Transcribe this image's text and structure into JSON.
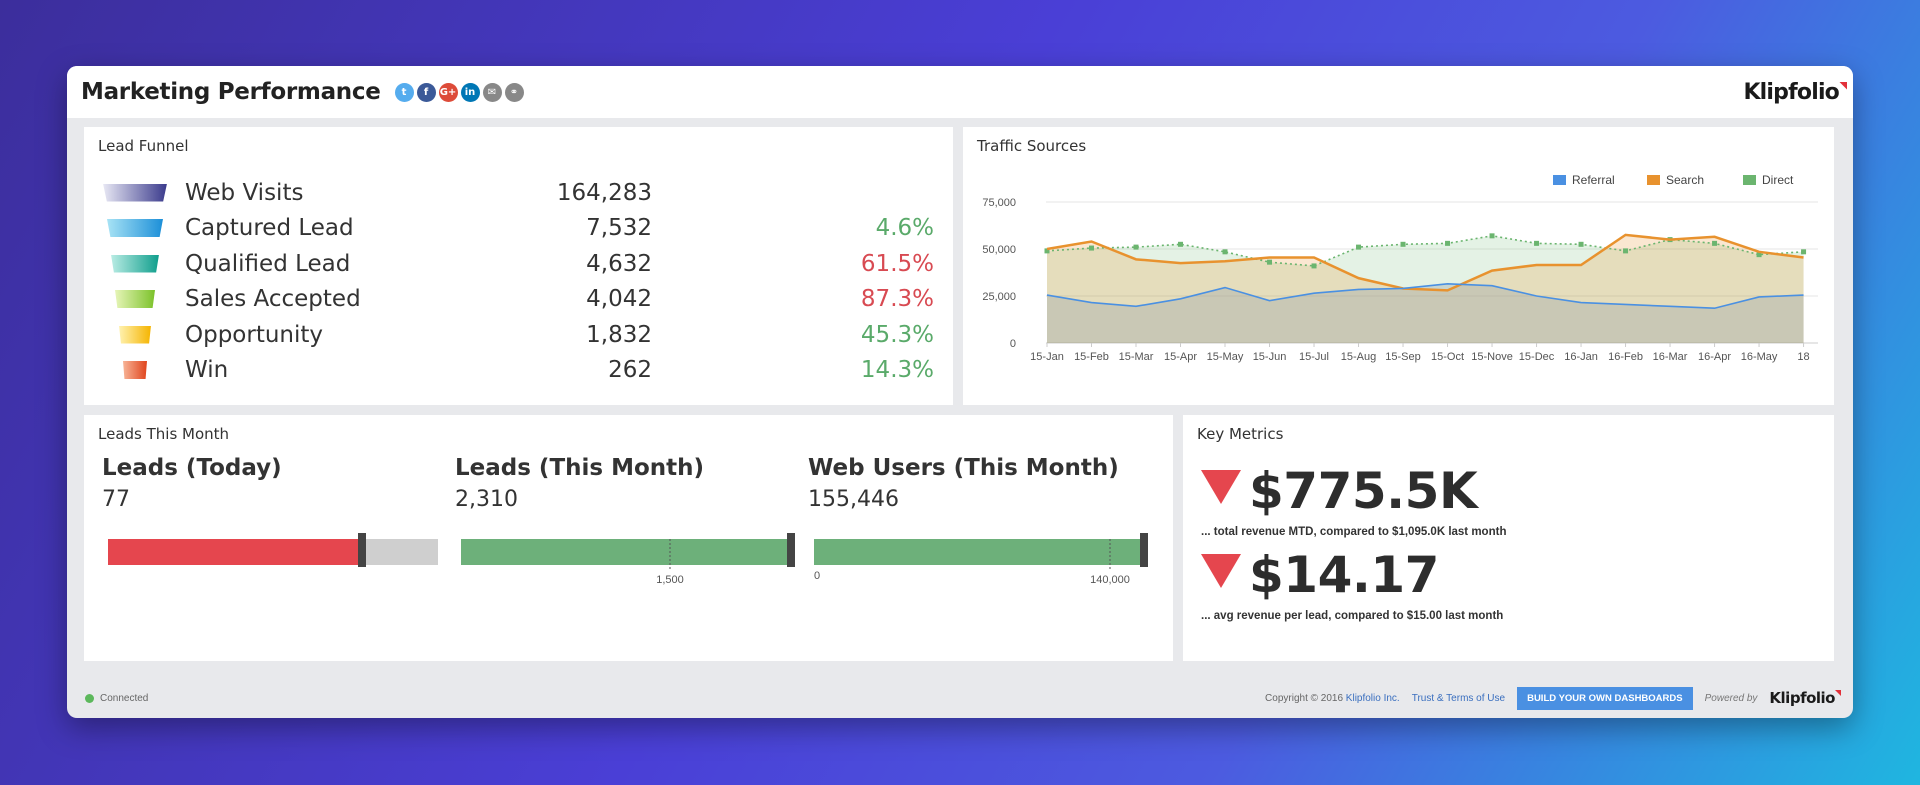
{
  "header": {
    "title": "Marketing Performance",
    "share_icons": [
      {
        "name": "twitter-icon",
        "glyph": "t",
        "color": "#55acee"
      },
      {
        "name": "facebook-icon",
        "glyph": "f",
        "color": "#3b5998"
      },
      {
        "name": "google-plus-icon",
        "glyph": "G+",
        "color": "#dd4b39"
      },
      {
        "name": "linkedin-icon",
        "glyph": "in",
        "color": "#0077b5"
      },
      {
        "name": "email-icon",
        "glyph": "✉",
        "color": "#888888"
      },
      {
        "name": "link-icon",
        "glyph": "⚭",
        "color": "#888888"
      }
    ],
    "brand": "Klipfolio"
  },
  "lead_funnel": {
    "title": "Lead Funnel",
    "rows": [
      {
        "label": "Web Visits",
        "value": "164,283",
        "pct": "",
        "pct_color": "",
        "colors": [
          "#e8e8f4",
          "#3a3a8c"
        ]
      },
      {
        "label": "Captured Lead",
        "value": "7,532",
        "pct": "4.6%",
        "pct_color": "#5aaa6a",
        "colors": [
          "#a8e3f5",
          "#1c8fd8"
        ]
      },
      {
        "label": "Qualified Lead",
        "value": "4,632",
        "pct": "61.5%",
        "pct_color": "#d84a52",
        "colors": [
          "#b9ece4",
          "#0f9e8c"
        ]
      },
      {
        "label": "Sales Accepted",
        "value": "4,042",
        "pct": "87.3%",
        "pct_color": "#d84a52",
        "colors": [
          "#e6f5b8",
          "#7cc22a"
        ]
      },
      {
        "label": "Opportunity",
        "value": "1,832",
        "pct": "45.3%",
        "pct_color": "#5aaa6a",
        "colors": [
          "#fff2b0",
          "#f5b400"
        ]
      },
      {
        "label": "Win",
        "value": "262",
        "pct": "14.3%",
        "pct_color": "#5aaa6a",
        "colors": [
          "#f7b497",
          "#e0441c"
        ]
      }
    ]
  },
  "traffic_sources": {
    "title": "Traffic Sources"
  },
  "chart_data": {
    "type": "area",
    "title": "Traffic Sources",
    "categories": [
      "15-Jan",
      "15-Feb",
      "15-Mar",
      "15-Apr",
      "15-May",
      "15-Jun",
      "15-Jul",
      "15-Aug",
      "15-Sep",
      "15-Oct",
      "15-Nove",
      "15-Dec",
      "16-Jan",
      "16-Feb",
      "16-Mar",
      "16-Apr",
      "16-May",
      "18"
    ],
    "yticks": [
      "0",
      "25,000",
      "50,000",
      "75,000"
    ],
    "ylim": [
      0,
      75000
    ],
    "legend_position": "top-right",
    "series": [
      {
        "name": "Referral",
        "color": "#4a90e2",
        "values": [
          25500,
          21500,
          19500,
          23500,
          29500,
          22500,
          26500,
          28500,
          29000,
          31500,
          30500,
          25000,
          21500,
          20500,
          19500,
          18500,
          24500,
          25500
        ]
      },
      {
        "name": "Search",
        "color": "#e8922e",
        "values": [
          50000,
          54000,
          44500,
          42500,
          43500,
          45500,
          45500,
          34500,
          29000,
          28000,
          38500,
          41500,
          41500,
          57500,
          55000,
          56500,
          48500,
          45500
        ]
      },
      {
        "name": "Direct",
        "color": "#6bb56f",
        "values": [
          49000,
          50500,
          51000,
          52500,
          48500,
          43000,
          41000,
          51000,
          52500,
          53000,
          57000,
          53000,
          52500,
          49000,
          55000,
          53000,
          47000,
          48500
        ]
      }
    ]
  },
  "leads_month": {
    "title": "Leads This Month",
    "gauges": [
      {
        "title": "Leads (Today)",
        "value": "77",
        "fill": 0.77,
        "target": 0.77,
        "color": "#e5464e",
        "tick_label": "",
        "start_label": ""
      },
      {
        "title": "Leads (This Month)",
        "value": "2,310",
        "fill": 1.0,
        "target": 1.0,
        "color": "#6db07a",
        "tick_label": "1,500",
        "start_label": ""
      },
      {
        "title": "Web Users (This Month)",
        "value": "155,446",
        "fill": 1.0,
        "target": 1.0,
        "color": "#6db07a",
        "tick_label": "140,000",
        "start_label": "0"
      }
    ]
  },
  "key_metrics": {
    "title": "Key Metrics",
    "items": [
      {
        "value": "$775.5K",
        "note": "... total revenue MTD, compared to $1,095.0K last month",
        "trend": "down"
      },
      {
        "value": "$14.17",
        "note": "... avg revenue per lead, compared to $15.00 last month",
        "trend": "down"
      }
    ]
  },
  "footer": {
    "status": "Connected",
    "copyright": "Copyright © 2016",
    "copyright_link": "Klipfolio Inc.",
    "terms": "Trust & Terms of Use",
    "build_button": "BUILD YOUR OWN DASHBOARDS",
    "powered": "Powered by",
    "brand": "Klipfolio"
  }
}
